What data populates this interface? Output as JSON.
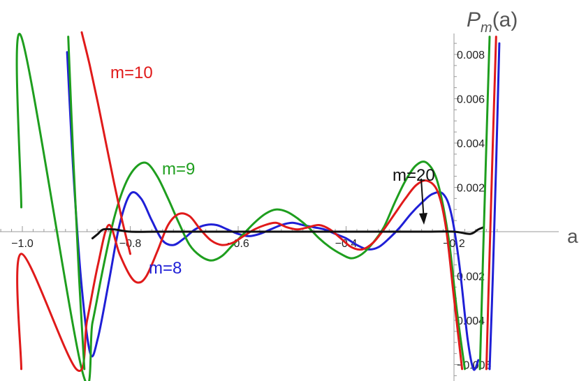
{
  "chart_data": {
    "type": "line",
    "title": "",
    "xlabel": "a",
    "ylabel": {
      "base": "P",
      "sub": "m",
      "rest": "(a)"
    },
    "xlim": [
      -1.03,
      -0.1
    ],
    "ylim": [
      -0.0065,
      0.009
    ],
    "x_ticks": [
      {
        "value": -1.0,
        "label": "−1.0"
      },
      {
        "value": -0.8,
        "label": "−0.8"
      },
      {
        "value": -0.6,
        "label": "−0.6"
      },
      {
        "value": -0.4,
        "label": "−0.4"
      },
      {
        "value": -0.2,
        "label": "−0.2"
      }
    ],
    "y_ticks": [
      {
        "value": 0.008,
        "label": "0.008"
      },
      {
        "value": 0.006,
        "label": "0.006"
      },
      {
        "value": 0.004,
        "label": "0.004"
      },
      {
        "value": 0.002,
        "label": "0.002"
      },
      {
        "value": -0.002,
        "label": "0.002"
      },
      {
        "value": -0.004,
        "label": "0.004"
      },
      {
        "value": -0.006,
        "label": "−0.006"
      }
    ],
    "grid": false,
    "series": [
      {
        "name": "m=8",
        "color": "#1f1fd6",
        "x": [
          -0.917,
          -0.905,
          -0.89,
          -0.874,
          -0.86,
          -0.84,
          -0.82,
          -0.8,
          -0.78,
          -0.76,
          -0.74,
          -0.72,
          -0.7,
          -0.68,
          -0.66,
          -0.64,
          -0.62,
          -0.6,
          -0.58,
          -0.56,
          -0.54,
          -0.52,
          -0.5,
          -0.48,
          -0.46,
          -0.44,
          -0.42,
          -0.4,
          -0.38,
          -0.36,
          -0.34,
          -0.32,
          -0.3,
          -0.28,
          -0.26,
          -0.24,
          -0.22,
          -0.205,
          -0.19,
          -0.175,
          -0.164,
          -0.155
        ],
        "y": [
          0.0081,
          0.0025,
          -0.0025,
          -0.0055,
          -0.0048,
          -0.0023,
          0.0003,
          0.0017,
          0.0015,
          0.0005,
          -0.0004,
          -0.0006,
          -0.0003,
          0.0001,
          0.0003,
          0.0003,
          0.0001,
          -0.0001,
          -0.0002,
          -0.0001,
          0.0001,
          0.0003,
          0.0004,
          0.0003,
          0.0002,
          0.0001,
          -0.0001,
          -0.0003,
          -0.0006,
          -0.0008,
          -0.0007,
          -0.0003,
          0.0002,
          0.0008,
          0.0013,
          0.0017,
          0.0017,
          0.0008,
          -0.0015,
          -0.0048,
          -0.0062,
          -0.0058
        ]
      },
      {
        "name": "m=9",
        "color": "#1e9e1e",
        "x": [
          -1.002,
          -1.002,
          -0.89,
          -0.87,
          -0.85,
          -0.83,
          -0.81,
          -0.79,
          -0.77,
          -0.75,
          -0.73,
          -0.71,
          -0.69,
          -0.67,
          -0.65,
          -0.63,
          -0.61,
          -0.59,
          -0.57,
          -0.55,
          -0.53,
          -0.51,
          -0.49,
          -0.47,
          -0.45,
          -0.43,
          -0.41,
          -0.39,
          -0.37,
          -0.35,
          -0.33,
          -0.31,
          -0.29,
          -0.27,
          -0.25,
          -0.23,
          -0.21,
          -0.195,
          -0.18
        ],
        "y": [
          0.0011,
          0.0088,
          -0.0062,
          -0.0041,
          -0.0016,
          0.0006,
          0.0021,
          0.0029,
          0.0031,
          0.0025,
          0.0015,
          0.0004,
          -0.0006,
          -0.0011,
          -0.0013,
          -0.0011,
          -0.0006,
          -0.0001,
          0.0004,
          0.0008,
          0.001,
          0.0009,
          0.0006,
          0.0002,
          -0.0003,
          -0.0007,
          -0.001,
          -0.0012,
          -0.001,
          -0.0005,
          0.0002,
          0.0013,
          0.0023,
          0.003,
          0.0031,
          0.0022,
          -0.0003,
          -0.0035,
          -0.0062
        ]
      },
      {
        "name": "m=10",
        "color": "#e01a1a",
        "x": [
          -1.002,
          -1.002,
          -0.9,
          -0.88,
          -0.86,
          -0.84,
          -0.82,
          -0.8,
          -0.785,
          -0.77,
          -0.75,
          -0.73,
          -0.71,
          -0.69,
          -0.67,
          -0.65,
          -0.63,
          -0.61,
          -0.59,
          -0.57,
          -0.55,
          -0.53,
          -0.51,
          -0.49,
          -0.47,
          -0.45,
          -0.43,
          -0.41,
          -0.39,
          -0.37,
          -0.35,
          -0.33,
          -0.31,
          -0.29,
          -0.27,
          -0.25,
          -0.23,
          -0.215,
          -0.2,
          -0.185
        ],
        "y": [
          -0.0062,
          -0.001,
          -0.0062,
          -0.004,
          -0.0015,
          0.0003,
          -0.001,
          -0.002,
          -0.0023,
          -0.002,
          -0.0009,
          0.0003,
          0.0008,
          0.0007,
          0.0001,
          -0.0004,
          -0.0006,
          -0.0005,
          -0.0002,
          0.0001,
          0.0003,
          0.0004,
          0.0002,
          0.0001,
          0.0002,
          0.0003,
          0.0001,
          -0.0003,
          -0.0007,
          -0.0008,
          -0.0005,
          0.0001,
          0.0008,
          0.0015,
          0.0021,
          0.0023,
          0.0018,
          0.0002,
          -0.003,
          -0.0062
        ]
      },
      {
        "name": "m=10",
        "color": "#e01a1a",
        "x": [
          -0.89,
          -0.875,
          -0.86,
          -0.845,
          -0.83,
          -0.815,
          -0.8
        ],
        "y": [
          0.009,
          0.0075,
          0.0058,
          0.004,
          0.0022,
          0.0005,
          -0.001
        ]
      },
      {
        "name": "m=20",
        "color": "#111111",
        "x": [
          -0.87,
          -0.86,
          -0.85,
          -0.83,
          -0.8,
          -0.75,
          -0.7,
          -0.65,
          -0.6,
          -0.55,
          -0.5,
          -0.45,
          -0.4,
          -0.35,
          -0.3,
          -0.25,
          -0.2,
          -0.17,
          -0.155,
          -0.145
        ],
        "y": [
          -0.0003,
          -0.0001,
          0.0001,
          0.0001,
          0.0,
          0.0,
          0.0,
          0.0,
          0.0,
          0.0,
          0.0,
          0.0,
          0.0,
          0.0,
          0.0,
          0.0,
          0.0,
          -0.0001,
          0.0001,
          0.0002
        ]
      },
      {
        "name": "m=8",
        "color": "#1f1fd6",
        "x": [
          -0.134,
          -0.128,
          -0.122,
          -0.116
        ],
        "y": [
          -0.0062,
          -0.002,
          0.003,
          0.0085
        ]
      },
      {
        "name": "m=9",
        "color": "#1e9e1e",
        "x": [
          -0.152,
          -0.146,
          -0.14,
          -0.134
        ],
        "y": [
          -0.0062,
          -0.001,
          0.004,
          0.0088
        ]
      },
      {
        "name": "m=10",
        "color": "#e01a1a",
        "x": [
          -0.14,
          -0.134,
          -0.128,
          -0.122
        ],
        "y": [
          -0.0062,
          -0.001,
          0.004,
          0.0088
        ]
      },
      {
        "name": "m=9",
        "color": "#1e9e1e",
        "x": [
          -0.915,
          -0.905,
          -0.895,
          -0.885
        ],
        "y": [
          0.0088,
          0.003,
          -0.002,
          -0.0062
        ]
      }
    ],
    "labels": [
      {
        "text": "m=10",
        "color": "#e01a1a"
      },
      {
        "text": "m=9",
        "color": "#1e9e1e"
      },
      {
        "text": "m=8",
        "color": "#1f1fd6"
      },
      {
        "text": "m=20",
        "color": "#111111"
      }
    ]
  }
}
